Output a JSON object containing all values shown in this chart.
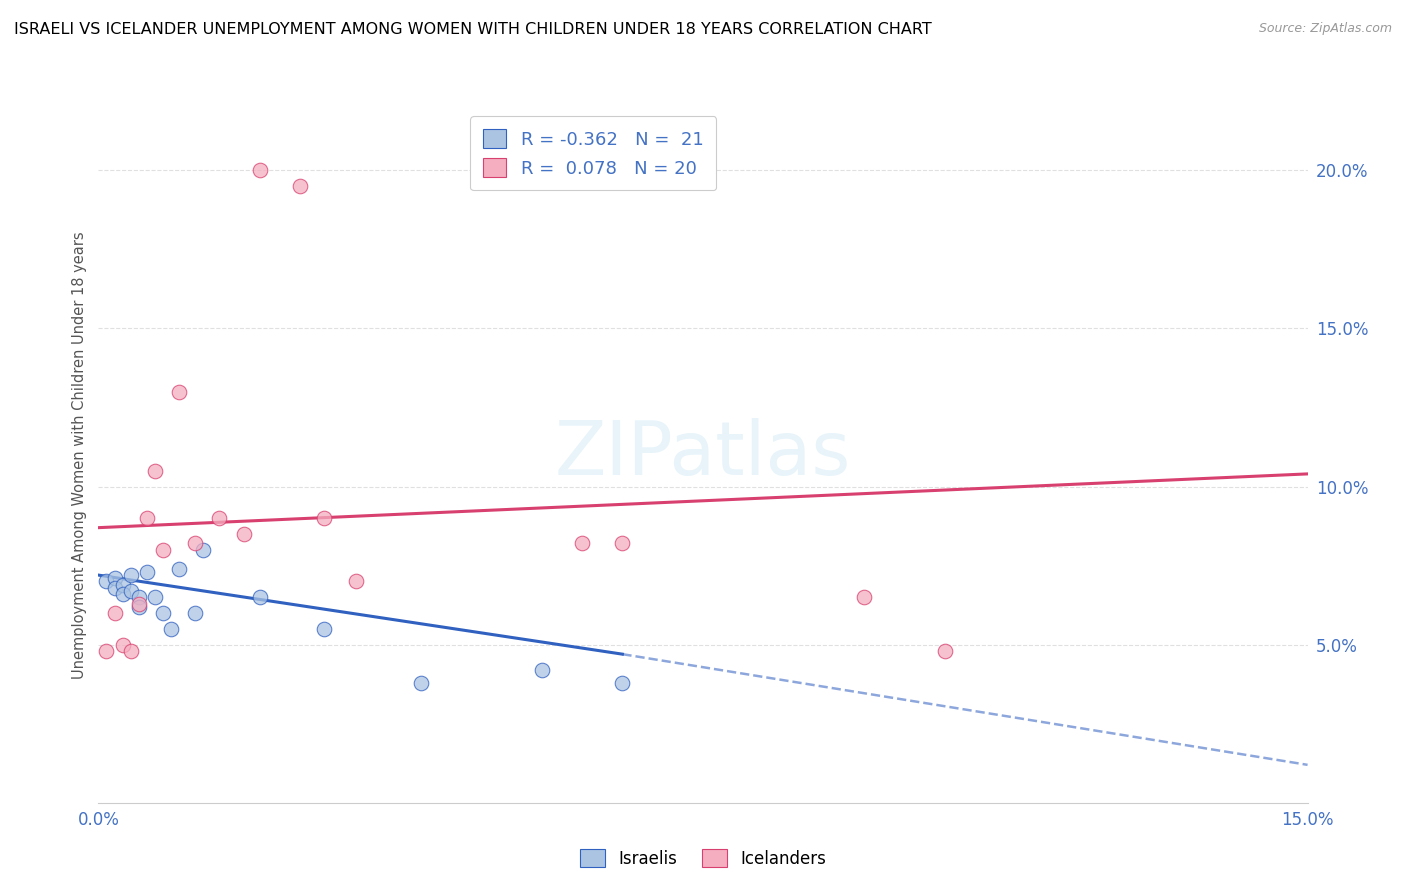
{
  "title": "ISRAELI VS ICELANDER UNEMPLOYMENT AMONG WOMEN WITH CHILDREN UNDER 18 YEARS CORRELATION CHART",
  "source": "Source: ZipAtlas.com",
  "ylabel": "Unemployment Among Women with Children Under 18 years",
  "xlim": [
    0.0,
    0.15
  ],
  "ylim": [
    0.0,
    0.22
  ],
  "x_ticks": [
    0.0,
    0.03,
    0.06,
    0.09,
    0.12,
    0.15
  ],
  "y_ticks_right": [
    0.05,
    0.1,
    0.15,
    0.2
  ],
  "y_tick_labels_right": [
    "5.0%",
    "10.0%",
    "15.0%",
    "20.0%"
  ],
  "legend_r_israeli": "-0.362",
  "legend_n_israeli": "21",
  "legend_r_icelander": "0.078",
  "legend_n_icelander": "20",
  "israeli_color": "#aac4e2",
  "icelander_color": "#f5aec0",
  "trendline_israeli_color": "#3060c0",
  "trendline_icelander_color": "#d84070",
  "watermark": "ZIPatlas",
  "israeli_scatter_x": [
    0.001,
    0.002,
    0.002,
    0.003,
    0.003,
    0.004,
    0.004,
    0.005,
    0.005,
    0.006,
    0.007,
    0.008,
    0.009,
    0.01,
    0.012,
    0.013,
    0.02,
    0.028,
    0.04,
    0.055,
    0.065
  ],
  "israeli_scatter_y": [
    0.07,
    0.071,
    0.068,
    0.069,
    0.066,
    0.067,
    0.072,
    0.065,
    0.062,
    0.073,
    0.065,
    0.06,
    0.055,
    0.074,
    0.06,
    0.08,
    0.065,
    0.055,
    0.038,
    0.042,
    0.038
  ],
  "icelander_scatter_x": [
    0.001,
    0.002,
    0.003,
    0.004,
    0.005,
    0.006,
    0.007,
    0.008,
    0.01,
    0.012,
    0.015,
    0.018,
    0.02,
    0.025,
    0.028,
    0.032,
    0.06,
    0.065,
    0.095,
    0.105
  ],
  "icelander_scatter_y": [
    0.048,
    0.06,
    0.05,
    0.048,
    0.063,
    0.09,
    0.105,
    0.08,
    0.13,
    0.082,
    0.09,
    0.085,
    0.2,
    0.195,
    0.09,
    0.07,
    0.082,
    0.082,
    0.065,
    0.048
  ],
  "trendline_israeli_y_at_0": 0.072,
  "trendline_israeli_y_at_065": 0.047,
  "trendline_israeli_solid_end_x": 0.065,
  "trendline_israeli_dash_end_x": 0.15,
  "trendline_israeli_y_at_15": 0.012,
  "trendline_icelander_y_at_0": 0.087,
  "trendline_icelander_y_at_15": 0.104,
  "background_color": "#ffffff",
  "grid_color": "#e0e0e0"
}
